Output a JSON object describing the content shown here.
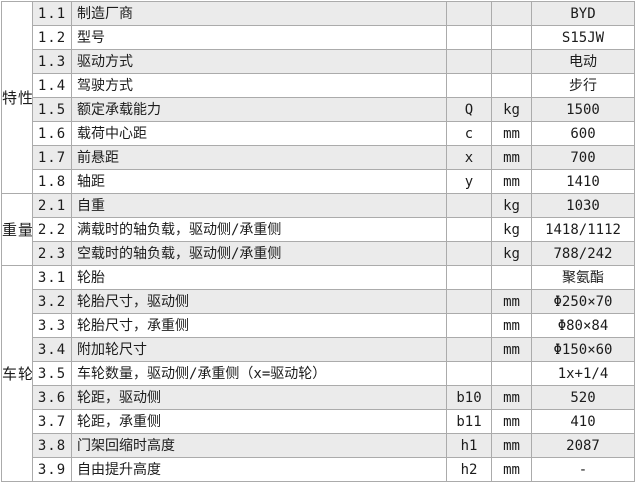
{
  "table": {
    "categories": [
      {
        "label": "特性"
      },
      {
        "label": "重量"
      },
      {
        "label": "车轮"
      }
    ],
    "rows": [
      {
        "no": "1.1",
        "desc": "制造厂商",
        "sym": "",
        "unit": "",
        "val": "BYD"
      },
      {
        "no": "1.2",
        "desc": "型号",
        "sym": "",
        "unit": "",
        "val": "S15JW"
      },
      {
        "no": "1.3",
        "desc": "驱动方式",
        "sym": "",
        "unit": "",
        "val": "电动"
      },
      {
        "no": "1.4",
        "desc": "驾驶方式",
        "sym": "",
        "unit": "",
        "val": "步行"
      },
      {
        "no": "1.5",
        "desc": "额定承载能力",
        "sym": "Q",
        "unit": "kg",
        "val": "1500"
      },
      {
        "no": "1.6",
        "desc": "载荷中心距",
        "sym": "c",
        "unit": "mm",
        "val": "600"
      },
      {
        "no": "1.7",
        "desc": "前悬距",
        "sym": "x",
        "unit": "mm",
        "val": "700"
      },
      {
        "no": "1.8",
        "desc": "轴距",
        "sym": "y",
        "unit": "mm",
        "val": "1410"
      },
      {
        "no": "2.1",
        "desc": "自重",
        "sym": "",
        "unit": "kg",
        "val": "1030"
      },
      {
        "no": "2.2",
        "desc": "满载时的轴负载，驱动侧/承重侧",
        "sym": "",
        "unit": "kg",
        "val": "1418/1112"
      },
      {
        "no": "2.3",
        "desc": "空载时的轴负载，驱动侧/承重侧",
        "sym": "",
        "unit": "kg",
        "val": "788/242"
      },
      {
        "no": "3.1",
        "desc": "轮胎",
        "sym": "",
        "unit": "",
        "val": "聚氨酯"
      },
      {
        "no": "3.2",
        "desc": "轮胎尺寸，驱动侧",
        "sym": "",
        "unit": "mm",
        "val": "Φ250×70"
      },
      {
        "no": "3.3",
        "desc": "轮胎尺寸，承重侧",
        "sym": "",
        "unit": "mm",
        "val": "Φ80×84"
      },
      {
        "no": "3.4",
        "desc": "附加轮尺寸",
        "sym": "",
        "unit": "mm",
        "val": "Φ150×60"
      },
      {
        "no": "3.5",
        "desc": "车轮数量，驱动侧/承重侧（x=驱动轮）",
        "sym": "",
        "unit": "",
        "val": "1x+1/4"
      },
      {
        "no": "3.6",
        "desc": "轮距，驱动侧",
        "sym": "b10",
        "unit": "mm",
        "val": "520"
      },
      {
        "no": "3.7",
        "desc": "轮距，承重侧",
        "sym": "b11",
        "unit": "mm",
        "val": "410"
      },
      {
        "no": "3.8",
        "desc": "门架回缩时高度",
        "sym": "h1",
        "unit": "mm",
        "val": "2087"
      },
      {
        "no": "3.9",
        "desc": "自由提升高度",
        "sym": "h2",
        "unit": "mm",
        "val": "-"
      }
    ],
    "colors": {
      "stripe": "#ebebeb",
      "grid": "#ababab",
      "text": "#1c1c1c"
    }
  }
}
